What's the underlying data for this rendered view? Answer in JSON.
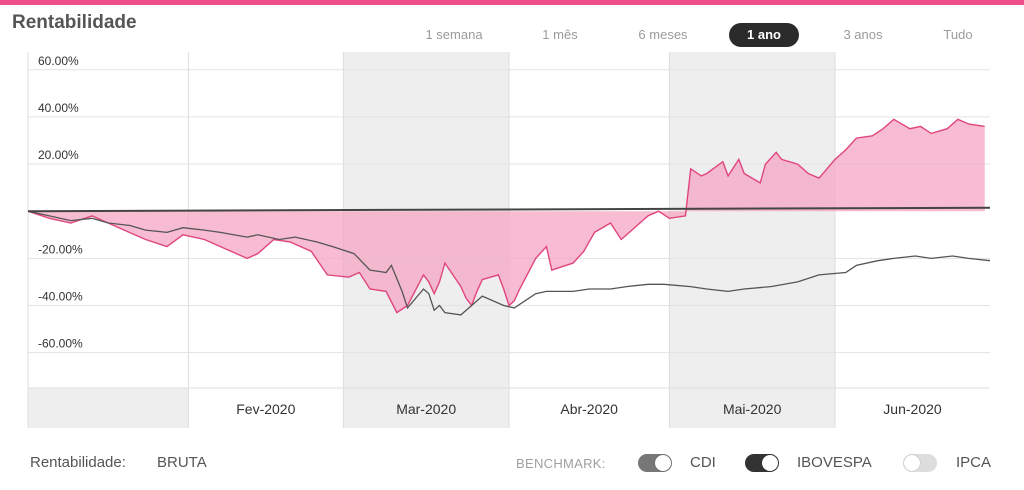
{
  "header": {
    "title": "Rentabilidade",
    "periods": [
      {
        "label": "1 semana",
        "active": false
      },
      {
        "label": "1 mês",
        "active": false
      },
      {
        "label": "6 meses",
        "active": false
      },
      {
        "label": "1 ano",
        "active": true
      },
      {
        "label": "3 anos",
        "active": false
      },
      {
        "label": "Tudo",
        "active": false
      }
    ]
  },
  "footer": {
    "rent_label": "Rentabilidade:",
    "rent_value": "BRUTA",
    "benchmark_label": "BENCHMARK:",
    "toggles": [
      {
        "label": "CDI",
        "on": true,
        "color": "#777777"
      },
      {
        "label": "IBOVESPA",
        "on": true,
        "color": "#333333"
      },
      {
        "label": "IPCA",
        "on": false,
        "color": "#dddddd"
      }
    ]
  },
  "colors": {
    "accent": "#ec4f8a",
    "fund_line": "#e0457e",
    "fund_fill": "#f4a5c2",
    "ibovespa_line": "#555555",
    "cdi_line": "#444444"
  },
  "chart_data": {
    "type": "area",
    "ylim": [
      -75,
      65
    ],
    "yticks": [
      60,
      40,
      20,
      0,
      -20,
      -40,
      -60
    ],
    "ytick_labels": [
      "60.00%",
      "40.00%",
      "20.00%",
      "",
      "-20.00%",
      "-40.00%",
      "-60.00%"
    ],
    "months": [
      "Fev-2020",
      "Mar-2020",
      "Abr-2020",
      "Mai-2020",
      "Jun-2020"
    ],
    "month_ticks": [
      "2020-02-01",
      "2020-03-01",
      "2020-04-01",
      "2020-05-01",
      "2020-06-01"
    ],
    "x_range": [
      "2020-01-02",
      "2020-06-30"
    ],
    "shaded_bands": [
      [
        "2020-03-01",
        "2020-04-01"
      ],
      [
        "2020-05-01",
        "2020-06-01"
      ]
    ],
    "grid": true,
    "series": [
      {
        "role": "fund",
        "x": [
          "2020-01-02",
          "2020-01-06",
          "2020-01-10",
          "2020-01-14",
          "2020-01-16",
          "2020-01-20",
          "2020-01-24",
          "2020-01-28",
          "2020-01-31",
          "2020-02-04",
          "2020-02-07",
          "2020-02-12",
          "2020-02-14",
          "2020-02-17",
          "2020-02-20",
          "2020-02-24",
          "2020-02-27",
          "2020-03-02",
          "2020-03-04",
          "2020-03-06",
          "2020-03-09",
          "2020-03-11",
          "2020-03-13",
          "2020-03-16",
          "2020-03-17",
          "2020-03-18",
          "2020-03-19",
          "2020-03-20",
          "2020-03-23",
          "2020-03-24",
          "2020-03-25",
          "2020-03-26",
          "2020-03-27",
          "2020-03-30",
          "2020-03-31",
          "2020-04-01",
          "2020-04-02",
          "2020-04-03",
          "2020-04-06",
          "2020-04-08",
          "2020-04-09",
          "2020-04-13",
          "2020-04-15",
          "2020-04-17",
          "2020-04-20",
          "2020-04-22",
          "2020-04-24",
          "2020-04-27",
          "2020-04-29",
          "2020-05-01",
          "2020-05-04",
          "2020-05-05",
          "2020-05-07",
          "2020-05-08",
          "2020-05-11",
          "2020-05-12",
          "2020-05-14",
          "2020-05-15",
          "2020-05-18",
          "2020-05-19",
          "2020-05-21",
          "2020-05-22",
          "2020-05-25",
          "2020-05-27",
          "2020-05-29",
          "2020-06-01",
          "2020-06-03",
          "2020-06-05",
          "2020-06-08",
          "2020-06-10",
          "2020-06-12",
          "2020-06-15",
          "2020-06-17",
          "2020-06-19",
          "2020-06-22",
          "2020-06-24",
          "2020-06-26",
          "2020-06-29"
        ],
        "values": [
          0,
          -3,
          -5,
          -2,
          -4,
          -8,
          -12,
          -15,
          -10,
          -12,
          -15,
          -20,
          -18,
          -12,
          -13,
          -17,
          -27,
          -28,
          -26,
          -33,
          -34,
          -43,
          -40,
          -27,
          -30,
          -35,
          -30,
          -22,
          -32,
          -37,
          -40,
          -34,
          -29,
          -27,
          -33,
          -40,
          -38,
          -33,
          -20,
          -15,
          -25,
          -22,
          -17,
          -9,
          -5,
          -12,
          -8,
          -2,
          0,
          -3,
          -2,
          18,
          15,
          16,
          21,
          15,
          22,
          16,
          12,
          20,
          25,
          22,
          20,
          16,
          14,
          22,
          26,
          31,
          32,
          35,
          39,
          35,
          36,
          33,
          35,
          39,
          37,
          36
        ]
      },
      {
        "role": "ibovespa",
        "x": [
          "2020-01-02",
          "2020-01-06",
          "2020-01-10",
          "2020-01-14",
          "2020-01-17",
          "2020-01-21",
          "2020-01-24",
          "2020-01-28",
          "2020-01-31",
          "2020-02-04",
          "2020-02-07",
          "2020-02-12",
          "2020-02-14",
          "2020-02-18",
          "2020-02-21",
          "2020-02-25",
          "2020-02-28",
          "2020-03-03",
          "2020-03-06",
          "2020-03-09",
          "2020-03-10",
          "2020-03-12",
          "2020-03-13",
          "2020-03-16",
          "2020-03-17",
          "2020-03-18",
          "2020-03-19",
          "2020-03-20",
          "2020-03-23",
          "2020-03-25",
          "2020-03-27",
          "2020-03-31",
          "2020-04-02",
          "2020-04-06",
          "2020-04-08",
          "2020-04-13",
          "2020-04-16",
          "2020-04-20",
          "2020-04-23",
          "2020-04-27",
          "2020-04-30",
          "2020-05-05",
          "2020-05-08",
          "2020-05-12",
          "2020-05-15",
          "2020-05-20",
          "2020-05-25",
          "2020-05-29",
          "2020-06-03",
          "2020-06-05",
          "2020-06-09",
          "2020-06-12",
          "2020-06-16",
          "2020-06-19",
          "2020-06-23",
          "2020-06-26",
          "2020-06-30"
        ],
        "values": [
          0,
          -2,
          -4,
          -3,
          -5,
          -6,
          -8,
          -9,
          -7,
          -8,
          -9,
          -11,
          -10,
          -12,
          -11,
          -13,
          -15,
          -18,
          -25,
          -26,
          -23,
          -34,
          -41,
          -33,
          -35,
          -42,
          -40,
          -43,
          -44,
          -40,
          -36,
          -40,
          -41,
          -35,
          -34,
          -34,
          -33,
          -33,
          -32,
          -31,
          -31,
          -32,
          -33,
          -34,
          -33,
          -32,
          -30,
          -27,
          -26,
          -23,
          -21,
          -20,
          -19,
          -20,
          -19,
          -20,
          -21
        ]
      },
      {
        "role": "cdi",
        "x": [
          "2020-01-02",
          "2020-06-30"
        ],
        "values": [
          0,
          1.5
        ]
      }
    ]
  }
}
